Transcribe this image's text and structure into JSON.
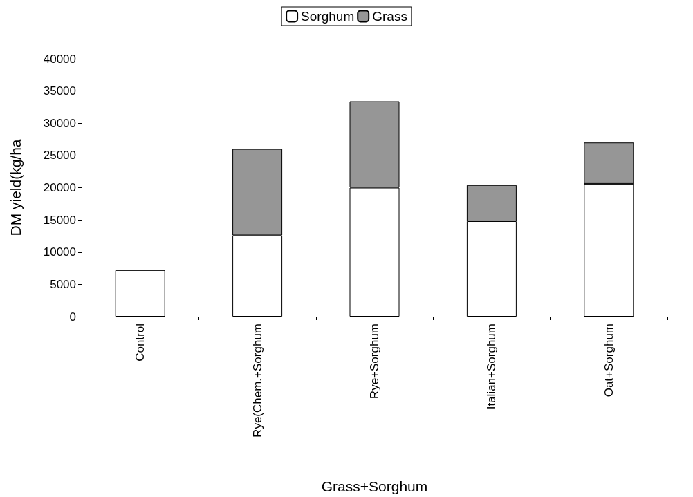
{
  "chart_data": {
    "type": "bar",
    "stacked": true,
    "xlabel": "Grass+Sorghum",
    "ylabel": "DM yield(kg/ha",
    "categories": [
      "Control",
      "Rye(Chem.+Sorghum",
      "Rye+Sorghum",
      "Italian+Sorghum",
      "Oat+Sorghum"
    ],
    "series": [
      {
        "name": "Sorghum",
        "color": "#ffffff",
        "values": [
          7200,
          12600,
          20000,
          14800,
          20600
        ]
      },
      {
        "name": "Grass",
        "color": "#969696",
        "values": [
          null,
          13400,
          13400,
          5600,
          6400
        ]
      }
    ],
    "ylim": [
      0,
      40000
    ],
    "yticks": [
      0,
      5000,
      10000,
      15000,
      20000,
      25000,
      30000,
      35000,
      40000
    ],
    "grid": false,
    "legend": "top"
  }
}
